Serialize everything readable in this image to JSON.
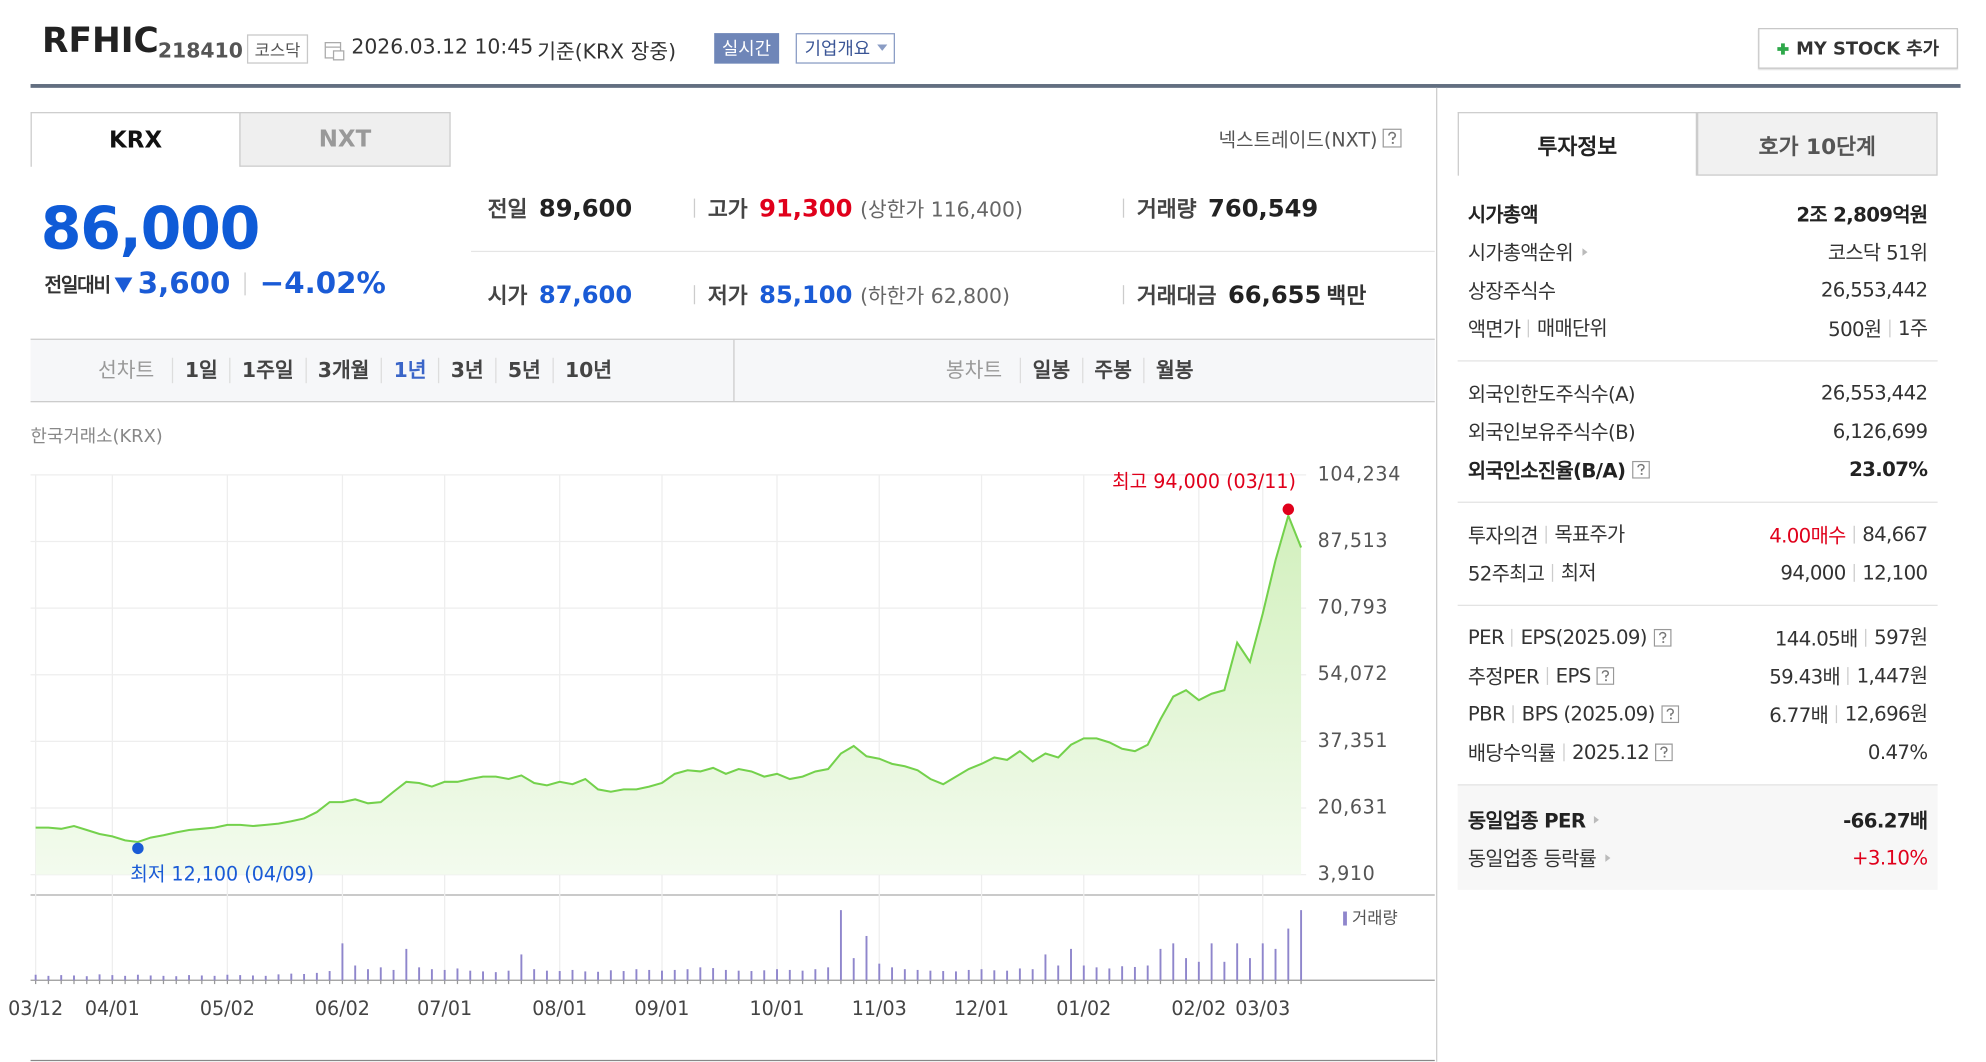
{
  "header": {
    "name": "RFHIC",
    "code": "218410",
    "market": "코스닥",
    "datetime": "2026.03.12 10:45",
    "basis": "기준(KRX 장중)",
    "realtime": "실시간",
    "company_info": "기업개요",
    "my_stock": "MY STOCK 추가"
  },
  "tabs": [
    "KRX",
    "NXT"
  ],
  "nxt_info": "넥스트레이드(NXT)",
  "price": {
    "current": "86,000",
    "change_label": "전일대비",
    "change": "3,600",
    "change_rate": "−4.02%"
  },
  "stats": [
    [
      {
        "label": "전일",
        "value": "89,600"
      },
      {
        "label": "고가",
        "value": "91,300",
        "note": "(상한가 116,400)"
      },
      {
        "label": "거래량",
        "value": "760,549"
      }
    ],
    [
      {
        "label": "시가",
        "value": "87,600"
      },
      {
        "label": "저가",
        "value": "85,100",
        "note": "(하한가 62,800)"
      },
      {
        "label": "거래대금",
        "value": "66,655",
        "unit": "백만"
      }
    ]
  ],
  "controls": {
    "line_label": "선차트",
    "line_periods": [
      "1일",
      "1주일",
      "3개월",
      "1년",
      "3년",
      "5년",
      "10년"
    ],
    "candle_label": "봉차트",
    "candle_periods": [
      "일봉",
      "주봉",
      "월봉"
    ]
  },
  "exchange": "한국거래소(KRX)",
  "chart_data": {
    "type": "line",
    "categories": [
      "03/12",
      null,
      null,
      null,
      null,
      null,
      "04/01",
      null,
      null,
      null,
      null,
      null,
      null,
      null,
      null,
      "05/02",
      null,
      null,
      null,
      null,
      null,
      null,
      null,
      null,
      "06/02",
      null,
      null,
      null,
      null,
      null,
      null,
      null,
      "07/01",
      null,
      null,
      null,
      null,
      null,
      null,
      null,
      null,
      "08/01",
      null,
      null,
      null,
      null,
      null,
      null,
      null,
      "09/01",
      null,
      null,
      null,
      null,
      null,
      null,
      null,
      null,
      "10/01",
      null,
      null,
      null,
      null,
      null,
      null,
      null,
      "11/03",
      null,
      null,
      null,
      null,
      null,
      null,
      null,
      "12/01",
      null,
      null,
      null,
      null,
      null,
      null,
      null,
      "01/02",
      null,
      null,
      null,
      null,
      null,
      null,
      null,
      null,
      "02/02",
      null,
      null,
      null,
      null,
      "03/03",
      null,
      null,
      null
    ],
    "values": [
      15700,
      15700,
      15400,
      16100,
      15100,
      14100,
      13500,
      12500,
      12100,
      13200,
      13800,
      14500,
      15100,
      15400,
      15700,
      16400,
      16400,
      16100,
      16400,
      16700,
      17300,
      18000,
      19600,
      22100,
      22100,
      22800,
      21800,
      22100,
      24700,
      27200,
      26900,
      26000,
      27200,
      27200,
      27900,
      28500,
      28500,
      27900,
      28800,
      26900,
      26300,
      27200,
      26600,
      27900,
      25300,
      24700,
      25300,
      25300,
      26000,
      26900,
      29200,
      30100,
      29800,
      30700,
      29200,
      30400,
      29800,
      28500,
      29200,
      27900,
      28500,
      29800,
      30400,
      34300,
      36200,
      33600,
      33000,
      31700,
      31100,
      30100,
      27900,
      26600,
      28500,
      30400,
      31700,
      33300,
      32700,
      34900,
      32300,
      34300,
      33300,
      36500,
      38100,
      38100,
      37100,
      35500,
      34900,
      36500,
      42900,
      48600,
      50200,
      47700,
      49300,
      50200,
      62100,
      57300,
      69400,
      82800,
      94000,
      86000
    ],
    "color": "#74d14c",
    "ylim": [
      3910,
      104234
    ],
    "yticks": [
      {
        "value": 3910,
        "label": "3,910"
      },
      {
        "value": 20631,
        "label": "20,631"
      },
      {
        "value": 37351,
        "label": "37,351"
      },
      {
        "value": 54072,
        "label": "54,072"
      },
      {
        "value": 70793,
        "label": "70,793"
      },
      {
        "value": 87513,
        "label": "87,513"
      },
      {
        "value": 104234,
        "label": "104,234"
      }
    ],
    "grid": true,
    "max_label": "최고 94,000 (03/11)",
    "min_label": "최저 12,100 (04/09)",
    "volume": {
      "name": "거래량",
      "color": "#8f86cc",
      "vlim": [
        0,
        2000000
      ],
      "values": [
        150000,
        120000,
        140000,
        130000,
        110000,
        160000,
        140000,
        120000,
        150000,
        130000,
        120000,
        110000,
        140000,
        130000,
        120000,
        150000,
        140000,
        130000,
        120000,
        160000,
        180000,
        170000,
        200000,
        250000,
        1000000,
        400000,
        300000,
        350000,
        280000,
        850000,
        350000,
        300000,
        280000,
        320000,
        260000,
        240000,
        220000,
        260000,
        700000,
        300000,
        260000,
        250000,
        280000,
        240000,
        230000,
        270000,
        250000,
        300000,
        280000,
        260000,
        280000,
        300000,
        350000,
        330000,
        280000,
        260000,
        250000,
        270000,
        300000,
        280000,
        260000,
        300000,
        350000,
        1900000,
        600000,
        1200000,
        450000,
        350000,
        300000,
        280000,
        260000,
        250000,
        240000,
        280000,
        300000,
        270000,
        260000,
        320000,
        300000,
        700000,
        400000,
        850000,
        400000,
        350000,
        320000,
        380000,
        360000,
        400000,
        850000,
        1000000,
        600000,
        500000,
        1000000,
        500000,
        1000000,
        600000,
        1000000,
        850000,
        1400000,
        1900000
      ]
    }
  },
  "investment_info": {
    "tabs": [
      "투자정보",
      "호가 10단계"
    ],
    "groups": [
      [
        {
          "label": [
            "시가총액"
          ],
          "value": [
            "2조 2,809억원"
          ]
        },
        {
          "label": [
            "시가총액순위"
          ],
          "value": [
            "코스닥 51위"
          ]
        },
        {
          "label": [
            "상장주식수"
          ],
          "value": [
            "26,553,442"
          ]
        },
        {
          "label": [
            "액면가",
            "매매단위"
          ],
          "value": [
            "500원",
            "1주"
          ]
        }
      ],
      [
        {
          "label": [
            "외국인한도주식수(A)"
          ],
          "value": [
            "26,553,442"
          ]
        },
        {
          "label": [
            "외국인보유주식수(B)"
          ],
          "value": [
            "6,126,699"
          ]
        },
        {
          "label": [
            "외국인소진율(B/A)"
          ],
          "value": [
            "23.07%"
          ]
        }
      ],
      [
        {
          "label": [
            "투자의견",
            "목표주가"
          ],
          "value": [
            "4.00매수",
            "84,667"
          ]
        },
        {
          "label": [
            "52주최고",
            "최저"
          ],
          "value": [
            "94,000",
            "12,100"
          ]
        }
      ],
      [
        {
          "label": [
            "PER",
            "EPS(2025.09)"
          ],
          "value": [
            "144.05배",
            "597원"
          ]
        },
        {
          "label": [
            "추정PER",
            "EPS"
          ],
          "value": [
            "59.43배",
            "1,447원"
          ]
        },
        {
          "label": [
            "PBR",
            "BPS (2025.09)"
          ],
          "value": [
            "6.77배",
            "12,696원"
          ]
        },
        {
          "label": [
            "배당수익률",
            "2025.12"
          ],
          "value": [
            "0.47%"
          ]
        }
      ],
      [
        {
          "label": [
            "동일업종 PER"
          ],
          "value": [
            "-66.27배"
          ]
        },
        {
          "label": [
            "동일업종 등락률"
          ],
          "value": [
            "+3.10%"
          ]
        }
      ]
    ]
  }
}
